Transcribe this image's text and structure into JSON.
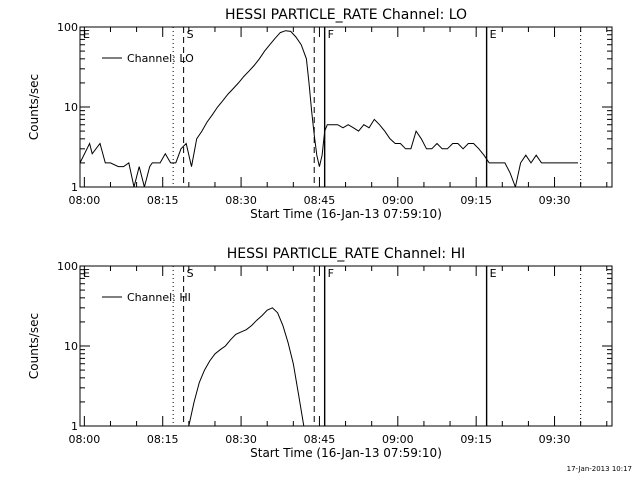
{
  "footer": {
    "timestamp": "17-Jan-2013 10:17"
  },
  "chart_data": [
    {
      "type": "line",
      "title": "HESSI PARTICLE_RATE Channel: LO",
      "xlabel": "Start Time (16-Jan-13 07:59:10)",
      "ylabel": "Counts/sec",
      "y_scale": "log",
      "ylim": [
        1,
        100
      ],
      "xlim": [
        "07:59:10",
        "09:41:00"
      ],
      "x_ticks": [
        "08:00",
        "08:15",
        "08:30",
        "08:45",
        "09:00",
        "09:15",
        "09:30"
      ],
      "y_ticks": [
        "1",
        "10",
        "100"
      ],
      "legend": {
        "label": "Channel: LO",
        "placement": "top-left"
      },
      "markers": [
        {
          "label": "E",
          "time": "07:59:10",
          "style": "dotted"
        },
        {
          "label": "",
          "time": "08:17:00",
          "style": "dotted"
        },
        {
          "label": "S",
          "time": "08:19:00",
          "style": "dashed"
        },
        {
          "label": "",
          "time": "08:44:00",
          "style": "dashed"
        },
        {
          "label": "F",
          "time": "08:46:00",
          "style": "solid"
        },
        {
          "label": "E",
          "time": "09:17:00",
          "style": "solid"
        },
        {
          "label": "",
          "time": "09:35:00",
          "style": "dotted"
        }
      ],
      "series": [
        {
          "x": [
            "07:59:10",
            "08:01:00",
            "08:01:30",
            "08:03:00",
            "08:04:00",
            "08:05:00",
            "08:06:30",
            "08:07:30",
            "08:08:30",
            "08:09:30",
            "08:10:30",
            "08:11:30",
            "08:12:30",
            "08:13:00",
            "08:14:30",
            "08:15:30",
            "08:16:30",
            "08:17:30",
            "08:18:30",
            "08:19:30",
            "08:20:30",
            "08:21:30",
            "08:22:30",
            "08:23:30",
            "08:24:30",
            "08:25:30",
            "08:26:30",
            "08:27:30",
            "08:28:30",
            "08:29:30",
            "08:30:30",
            "08:31:30",
            "08:32:30",
            "08:33:30",
            "08:34:30",
            "08:35:30",
            "08:36:30",
            "08:37:30",
            "08:38:30",
            "08:39:30",
            "08:40:30",
            "08:41:30",
            "08:42:30",
            "08:43:00",
            "08:43:30",
            "08:44:00",
            "08:44:30",
            "08:45:00",
            "08:45:30",
            "08:46:00",
            "08:46:30",
            "08:47:30",
            "08:48:30",
            "08:49:30",
            "08:50:30",
            "08:51:30",
            "08:52:30",
            "08:53:30",
            "08:54:30",
            "08:55:30",
            "08:56:30",
            "08:57:30",
            "08:58:30",
            "08:59:30",
            "09:00:30",
            "09:01:30",
            "09:02:30",
            "09:03:30",
            "09:04:30",
            "09:05:30",
            "09:06:30",
            "09:07:30",
            "09:08:30",
            "09:09:30",
            "09:10:30",
            "09:11:30",
            "09:12:30",
            "09:13:30",
            "09:14:30",
            "09:15:30",
            "09:16:30",
            "09:17:30",
            "09:18:30",
            "09:19:30",
            "09:20:30",
            "09:21:30",
            "09:22:30",
            "09:23:30",
            "09:24:30",
            "09:25:30",
            "09:26:30",
            "09:27:30",
            "09:28:30",
            "09:29:30",
            "09:30:30",
            "09:31:30",
            "09:32:30",
            "09:33:30",
            "09:34:30"
          ],
          "y": [
            2,
            3.5,
            2.6,
            3.5,
            2,
            2,
            1.8,
            1.8,
            2,
            1,
            1.8,
            1,
            1.8,
            2,
            2,
            2.6,
            2,
            2,
            3,
            3.5,
            1.8,
            4,
            5,
            6.5,
            8,
            10,
            12,
            14.5,
            17,
            20,
            24,
            28,
            33,
            40,
            50,
            60,
            72,
            85,
            90,
            88,
            75,
            60,
            40,
            20,
            9,
            4.5,
            2.5,
            1.8,
            2.5,
            5,
            6,
            6,
            6,
            5.5,
            6,
            5.5,
            5,
            6,
            5.5,
            7,
            6,
            5,
            4,
            3.5,
            3.5,
            3,
            3,
            5,
            4,
            3,
            3,
            3.5,
            3,
            3,
            3.5,
            3.5,
            3,
            3.5,
            3.5,
            3,
            2.5,
            2,
            2,
            2,
            2,
            1.5,
            1,
            2,
            2.5,
            2,
            2.5,
            2,
            2,
            2,
            2,
            2,
            2,
            2,
            2
          ]
        }
      ]
    },
    {
      "type": "line",
      "title": "HESSI PARTICLE_RATE Channel: HI",
      "xlabel": "Start Time (16-Jan-13 07:59:10)",
      "ylabel": "Counts/sec",
      "y_scale": "log",
      "ylim": [
        1,
        100
      ],
      "xlim": [
        "07:59:10",
        "09:41:00"
      ],
      "x_ticks": [
        "08:00",
        "08:15",
        "08:30",
        "08:45",
        "09:00",
        "09:15",
        "09:30"
      ],
      "y_ticks": [
        "1",
        "10",
        "100"
      ],
      "legend": {
        "label": "Channel: HI",
        "placement": "top-left"
      },
      "markers": [
        {
          "label": "E",
          "time": "07:59:10",
          "style": "dotted"
        },
        {
          "label": "",
          "time": "08:17:00",
          "style": "dotted"
        },
        {
          "label": "S",
          "time": "08:19:00",
          "style": "dashed"
        },
        {
          "label": "",
          "time": "08:44:00",
          "style": "dashed"
        },
        {
          "label": "F",
          "time": "08:46:00",
          "style": "solid"
        },
        {
          "label": "E",
          "time": "09:17:00",
          "style": "solid"
        },
        {
          "label": "",
          "time": "09:35:00",
          "style": "dotted"
        }
      ],
      "series": [
        {
          "x": [
            "08:20:00",
            "08:21:00",
            "08:22:00",
            "08:23:00",
            "08:24:00",
            "08:25:00",
            "08:26:00",
            "08:27:00",
            "08:28:00",
            "08:29:00",
            "08:30:00",
            "08:31:00",
            "08:32:00",
            "08:33:00",
            "08:34:00",
            "08:35:00",
            "08:36:00",
            "08:37:00",
            "08:38:00",
            "08:39:00",
            "08:40:00",
            "08:41:00",
            "08:42:00"
          ],
          "y": [
            1,
            2,
            3.5,
            5,
            6.5,
            8,
            9,
            10,
            12,
            14,
            15,
            16,
            18,
            21,
            24,
            28,
            30,
            26,
            18,
            11,
            6,
            2.5,
            1
          ]
        }
      ]
    }
  ]
}
